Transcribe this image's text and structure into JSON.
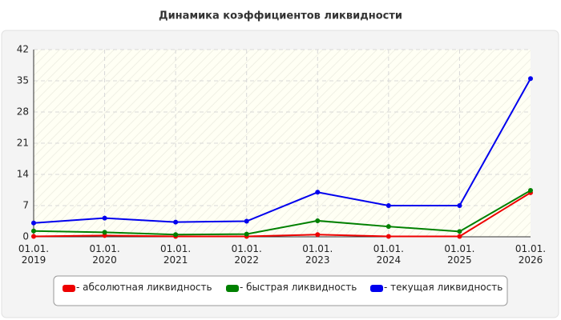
{
  "chart_data": {
    "type": "line",
    "title": "Динамика коэффициентов ликвидности",
    "categories": [
      "01.01. 2019",
      "01.01. 2020",
      "01.01. 2021",
      "01.01. 2022",
      "01.01. 2023",
      "01.01. 2024",
      "01.01. 2025",
      "01.01. 2026"
    ],
    "series": [
      {
        "name": "- абсолютная ликвидность",
        "color": "#ee0000",
        "values": [
          0.1,
          0.3,
          0.1,
          0.1,
          0.5,
          0.1,
          0.1,
          9.9
        ]
      },
      {
        "name": "- быстрая ликвидность",
        "color": "#008000",
        "values": [
          1.3,
          1.0,
          0.5,
          0.6,
          3.6,
          2.3,
          1.2,
          10.4
        ]
      },
      {
        "name": "- текущая ликвидность",
        "color": "#0000ee",
        "values": [
          3.1,
          4.2,
          3.3,
          3.5,
          10.0,
          7.0,
          7.0,
          35.5
        ]
      }
    ],
    "ylim": [
      0,
      42
    ],
    "yticks": [
      0,
      7,
      14,
      21,
      28,
      35,
      42
    ],
    "grid": true,
    "legend": "bottom"
  }
}
